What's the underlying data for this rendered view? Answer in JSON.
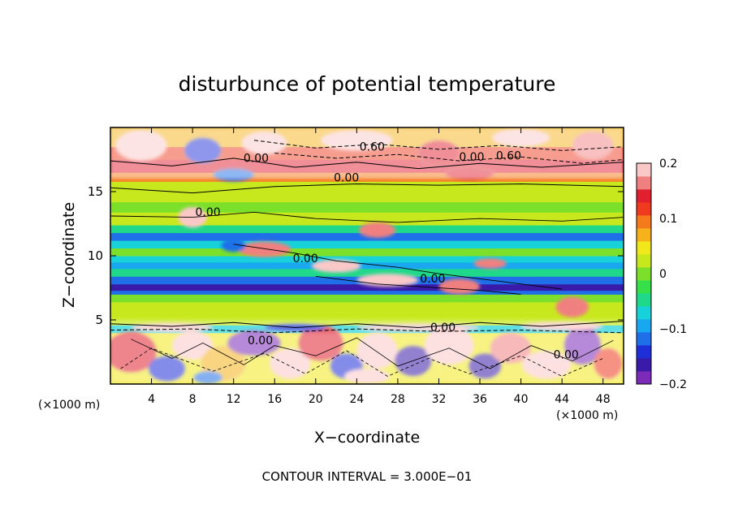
{
  "chart_data": {
    "type": "heatmap",
    "title": "disturbunce of potential temperature",
    "xlabel": "X−coordinate",
    "ylabel": "Z−coordinate",
    "x_unit_left": "(×1000 m)",
    "x_unit_right": "(×1000 m)",
    "xlim": [
      0,
      50
    ],
    "ylim": [
      0,
      20
    ],
    "x_ticks": [
      4,
      8,
      12,
      16,
      20,
      24,
      28,
      32,
      36,
      40,
      44,
      48
    ],
    "y_ticks": [
      5,
      10,
      15
    ],
    "colorbar": {
      "range": [
        -0.2,
        0.2
      ],
      "tick_labels": [
        "0.2",
        "0.1",
        "0",
        "−0.1",
        "−0.2"
      ],
      "tick_values": [
        0.2,
        0.1,
        0,
        -0.1,
        -0.2
      ],
      "colors": [
        "#7b2bb8",
        "#3a1aa8",
        "#1f2fd8",
        "#1f6fe8",
        "#19a8f0",
        "#17d2d8",
        "#1fd88a",
        "#35e04a",
        "#7ce02a",
        "#c8e81e",
        "#f0e81a",
        "#f5b21a",
        "#f57a1c",
        "#ef3a1f",
        "#e01f2f",
        "#f08080",
        "#fbc8c8"
      ]
    },
    "contour_labels": [
      {
        "text": "0.60",
        "x": 25.5,
        "y": 18.2
      },
      {
        "text": "0.00",
        "x": 35.2,
        "y": 17.4
      },
      {
        "text": "0.60",
        "x": 38.8,
        "y": 17.5
      },
      {
        "text": "0.00",
        "x": 14.2,
        "y": 17.3
      },
      {
        "text": "0.00",
        "x": 23.0,
        "y": 15.8
      },
      {
        "text": "0.00",
        "x": 9.5,
        "y": 13.1
      },
      {
        "text": "0.00",
        "x": 19.0,
        "y": 9.5
      },
      {
        "text": "0.00",
        "x": 31.4,
        "y": 7.9
      },
      {
        "text": "0.00",
        "x": 32.4,
        "y": 4.1
      },
      {
        "text": "0.00",
        "x": 14.6,
        "y": 3.1
      },
      {
        "text": "0.00",
        "x": 44.4,
        "y": 2.0
      }
    ],
    "footer": "CONTOUR INTERVAL = 3.000E−01"
  }
}
